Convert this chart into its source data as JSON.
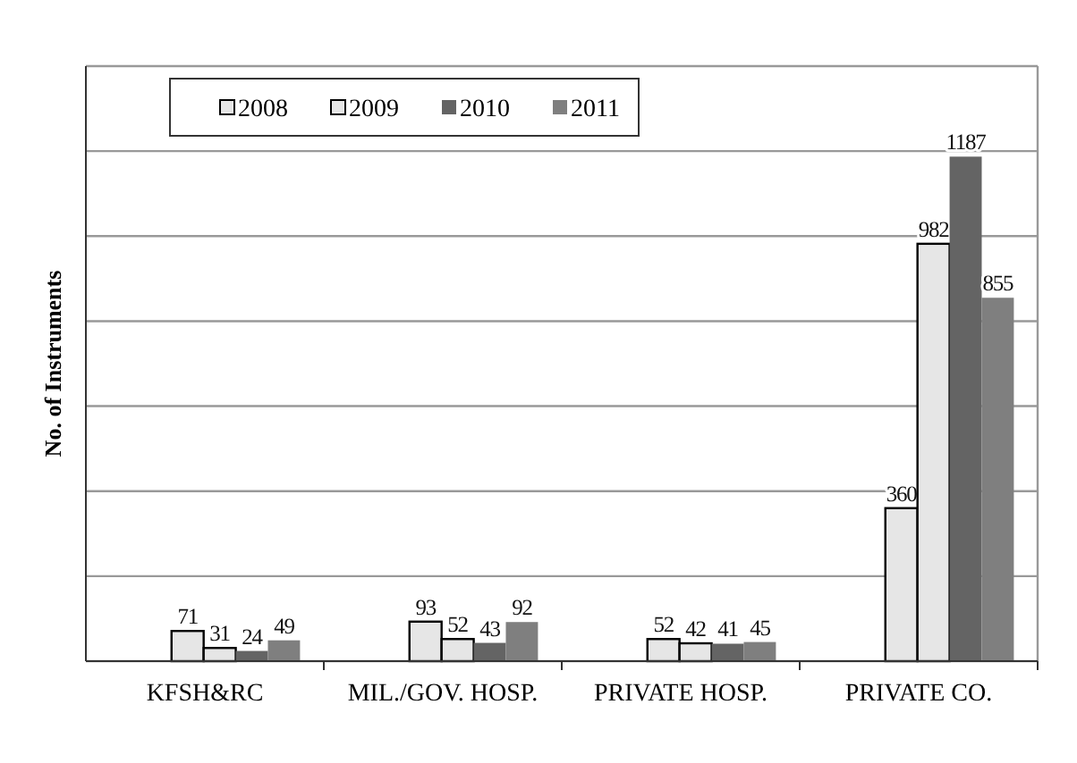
{
  "chart_data": {
    "type": "bar",
    "ylabel": "No. of Instruments",
    "categories": [
      "KFSH&RC",
      "MIL./GOV. HOSP.",
      "PRIVATE HOSP.",
      "PRIVATE CO."
    ],
    "series": [
      {
        "name": "2008",
        "color": "#e6e6e6",
        "values": [
          71,
          93,
          52,
          360
        ]
      },
      {
        "name": "2009",
        "color": "#e6e6e6",
        "values": [
          31,
          52,
          42,
          982
        ]
      },
      {
        "name": "2010",
        "color": "#646464",
        "values": [
          24,
          43,
          41,
          1187
        ]
      },
      {
        "name": "2011",
        "color": "#7f7f7f",
        "values": [
          49,
          92,
          45,
          855
        ]
      }
    ],
    "ylim": [
      0,
      1400
    ],
    "yticks": [
      {
        "value": 0,
        "label": null
      },
      {
        "value": 200,
        "label": null
      },
      {
        "value": 400,
        "label": null
      },
      {
        "value": 600,
        "label": null
      },
      {
        "value": 800,
        "label": null
      },
      {
        "value": 1000,
        "label": null
      },
      {
        "value": 1200,
        "label": null
      },
      {
        "value": 1400,
        "label": null
      }
    ],
    "tick_labels": "x",
    "grid": "y",
    "legend": "top",
    "data_labels": true
  }
}
